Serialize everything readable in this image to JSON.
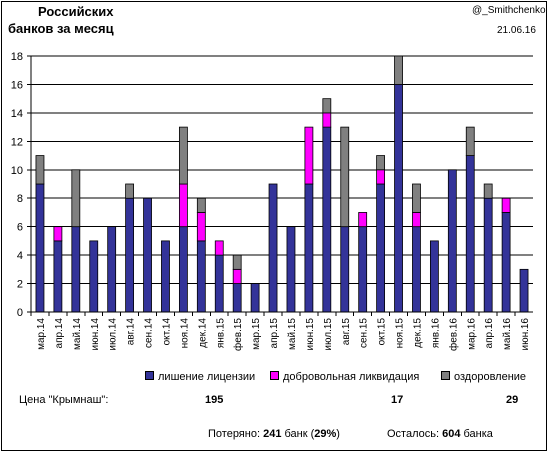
{
  "header": {
    "title_line1": "Российских",
    "title_line2": "банков за месяц",
    "author": "@_Smithchenko",
    "date": "21.06.16"
  },
  "chart_data": {
    "type": "bar",
    "stacked": true,
    "categories": [
      "мар.14",
      "апр.14",
      "май.14",
      "июн.14",
      "июл.14",
      "авг.14",
      "сен.14",
      "окт.14",
      "ноя.14",
      "дек.14",
      "янв.15",
      "фев.15",
      "мар.15",
      "апр.15",
      "май.15",
      "июн.15",
      "июл.15",
      "авг.15",
      "сен.15",
      "окт.15",
      "ноя.15",
      "дек.15",
      "янв.16",
      "фев.16",
      "мар.16",
      "апр.16",
      "май.16",
      "июн.16"
    ],
    "series": [
      {
        "name": "лишение лицензии",
        "color": "#333399",
        "values": [
          9,
          5,
          6,
          5,
          6,
          8,
          8,
          5,
          6,
          5,
          4,
          2,
          2,
          9,
          6,
          9,
          13,
          6,
          6,
          9,
          16,
          6,
          5,
          10,
          11,
          8,
          7,
          3
        ]
      },
      {
        "name": "добровольная ликвидация",
        "color": "#ff00ff",
        "values": [
          0,
          1,
          0,
          0,
          0,
          0,
          0,
          0,
          3,
          2,
          1,
          1,
          0,
          0,
          0,
          4,
          1,
          0,
          1,
          1,
          0,
          1,
          0,
          0,
          0,
          0,
          1,
          0
        ]
      },
      {
        "name": "оздоровление",
        "color": "#808080",
        "values": [
          2,
          0,
          4,
          0,
          0,
          1,
          0,
          0,
          4,
          1,
          0,
          1,
          0,
          0,
          0,
          0,
          1,
          7,
          0,
          1,
          2,
          2,
          0,
          0,
          2,
          1,
          0,
          0
        ]
      }
    ],
    "ylim": [
      0,
      18
    ],
    "yticks": [
      0,
      2,
      4,
      6,
      8,
      10,
      12,
      14,
      16,
      18
    ],
    "grid": true,
    "legend_position": "bottom"
  },
  "price": {
    "label": "Цена \"Крымнаш\":",
    "values": [
      "195",
      "17",
      "29"
    ]
  },
  "summary": {
    "lost_prefix": "Потеряно: ",
    "lost_count": "241",
    "lost_mid": " банк (",
    "lost_pct": "29%",
    "lost_suffix": ")",
    "remain_prefix": "Осталось: ",
    "remain_count": "604",
    "remain_suffix": " банка"
  }
}
